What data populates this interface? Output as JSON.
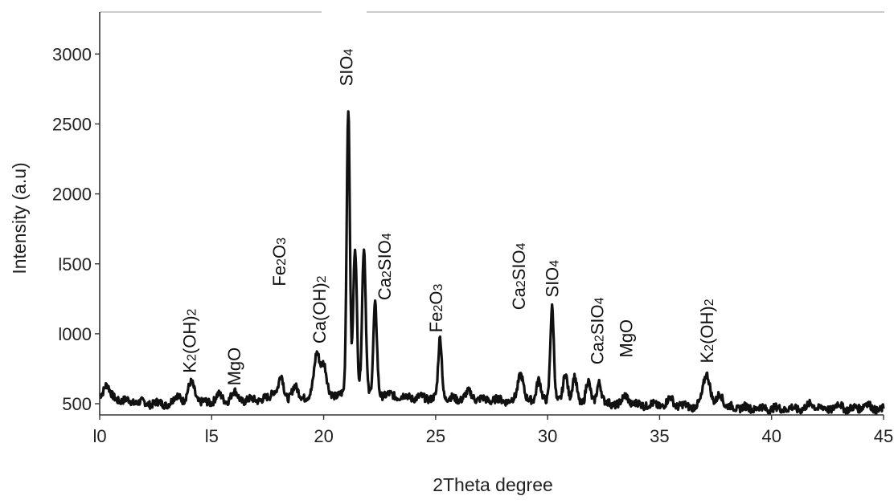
{
  "chart_data": {
    "type": "line",
    "title": "",
    "xlabel": "2Theta degree",
    "ylabel": "Intensity (a.u)",
    "xlim": [
      10,
      45
    ],
    "ylim": [
      420,
      3300
    ],
    "x_ticks": [
      10,
      15,
      20,
      25,
      30,
      35,
      40,
      45
    ],
    "x_tick_labels": [
      "l0",
      "l5",
      "20",
      "25",
      "30",
      "35",
      "40",
      "45"
    ],
    "y_ticks": [
      500,
      1000,
      1500,
      2000,
      2500,
      3000
    ],
    "y_tick_labels": [
      "500",
      "l000",
      "l500",
      "2000",
      "2500",
      "3000"
    ],
    "grid": false,
    "legend": "none",
    "line_color": "#111111",
    "baseline": [
      [
        10,
        560
      ],
      [
        10.5,
        545
      ],
      [
        11,
        525
      ],
      [
        12,
        505
      ],
      [
        13,
        500
      ],
      [
        14,
        505
      ],
      [
        15,
        510
      ],
      [
        16,
        520
      ],
      [
        17,
        530
      ],
      [
        18,
        540
      ],
      [
        19,
        550
      ],
      [
        20,
        560
      ],
      [
        21,
        570
      ],
      [
        22,
        575
      ],
      [
        23,
        560
      ],
      [
        24,
        545
      ],
      [
        25,
        540
      ],
      [
        26,
        535
      ],
      [
        27,
        530
      ],
      [
        28,
        525
      ],
      [
        29,
        520
      ],
      [
        30,
        515
      ],
      [
        31,
        510
      ],
      [
        32,
        505
      ],
      [
        33,
        500
      ],
      [
        34,
        495
      ],
      [
        35,
        490
      ],
      [
        36,
        485
      ],
      [
        37,
        480
      ],
      [
        38,
        475
      ],
      [
        39,
        470
      ],
      [
        40,
        465
      ],
      [
        41,
        465
      ],
      [
        42,
        465
      ],
      [
        43,
        465
      ],
      [
        44,
        465
      ],
      [
        45,
        460
      ]
    ],
    "peaks": [
      {
        "x": 10.3,
        "y": 640,
        "w": 0.12
      },
      {
        "x": 13.5,
        "y": 560,
        "w": 0.15
      },
      {
        "x": 14.1,
        "y": 650,
        "w": 0.15
      },
      {
        "x": 15.3,
        "y": 560,
        "w": 0.15
      },
      {
        "x": 16.0,
        "y": 580,
        "w": 0.15
      },
      {
        "x": 17.8,
        "y": 600,
        "w": 0.12
      },
      {
        "x": 18.1,
        "y": 690,
        "w": 0.1
      },
      {
        "x": 18.7,
        "y": 620,
        "w": 0.12
      },
      {
        "x": 19.7,
        "y": 860,
        "w": 0.12
      },
      {
        "x": 20.0,
        "y": 780,
        "w": 0.12
      },
      {
        "x": 21.1,
        "y": 2620,
        "w": 0.07
      },
      {
        "x": 21.4,
        "y": 1620,
        "w": 0.08
      },
      {
        "x": 21.8,
        "y": 1620,
        "w": 0.08
      },
      {
        "x": 22.3,
        "y": 1200,
        "w": 0.08
      },
      {
        "x": 25.2,
        "y": 970,
        "w": 0.08
      },
      {
        "x": 26.5,
        "y": 580,
        "w": 0.15
      },
      {
        "x": 28.8,
        "y": 720,
        "w": 0.12
      },
      {
        "x": 29.6,
        "y": 680,
        "w": 0.1
      },
      {
        "x": 30.2,
        "y": 1200,
        "w": 0.08
      },
      {
        "x": 30.8,
        "y": 720,
        "w": 0.1
      },
      {
        "x": 31.2,
        "y": 680,
        "w": 0.1
      },
      {
        "x": 31.8,
        "y": 660,
        "w": 0.1
      },
      {
        "x": 32.3,
        "y": 660,
        "w": 0.1
      },
      {
        "x": 33.5,
        "y": 560,
        "w": 0.12
      },
      {
        "x": 35.5,
        "y": 540,
        "w": 0.12
      },
      {
        "x": 37.1,
        "y": 720,
        "w": 0.15
      },
      {
        "x": 37.7,
        "y": 580,
        "w": 0.12
      },
      {
        "x": 41.8,
        "y": 500,
        "w": 0.15
      },
      {
        "x": 43.0,
        "y": 490,
        "w": 0.15
      },
      {
        "x": 44.2,
        "y": 500,
        "w": 0.15
      }
    ],
    "annotations": [
      {
        "main": "K",
        "sub": "2",
        "rest": "(OH)",
        "sub2": "2",
        "x": 14.0,
        "y": 720
      },
      {
        "main": "MgO",
        "sub": "",
        "rest": "",
        "sub2": "",
        "x": 16.0,
        "y": 630
      },
      {
        "main": "Fe",
        "sub": "2",
        "rest": "O",
        "sub2": "3",
        "x": 18.0,
        "y": 1340
      },
      {
        "main": "Ca(OH)",
        "sub": "2",
        "rest": "",
        "sub2": "",
        "x": 19.8,
        "y": 930
      },
      {
        "main": "SIO",
        "sub": "4",
        "rest": "",
        "sub2": "",
        "x": 21.0,
        "y": 2770
      },
      {
        "main": "Ca",
        "sub": "2",
        "rest": "SIO",
        "sub2": "4",
        "x": 22.7,
        "y": 1240
      },
      {
        "main": "Fe",
        "sub": "2",
        "rest": "O",
        "sub2": "3",
        "x": 25.0,
        "y": 1010
      },
      {
        "main": "Ca",
        "sub": "2",
        "rest": "SIO",
        "sub2": "4",
        "x": 28.7,
        "y": 1170
      },
      {
        "main": "SIO",
        "sub": "4",
        "rest": "",
        "sub2": "",
        "x": 30.2,
        "y": 1260
      },
      {
        "main": "Ca",
        "sub": "2",
        "rest": "SIO",
        "sub2": "4",
        "x": 32.2,
        "y": 780
      },
      {
        "main": "MgO",
        "sub": "",
        "rest": "",
        "sub2": "",
        "x": 33.5,
        "y": 830
      },
      {
        "main": "K",
        "sub": "2",
        "rest": "(OH)",
        "sub2": "2",
        "x": 37.1,
        "y": 790
      }
    ]
  }
}
